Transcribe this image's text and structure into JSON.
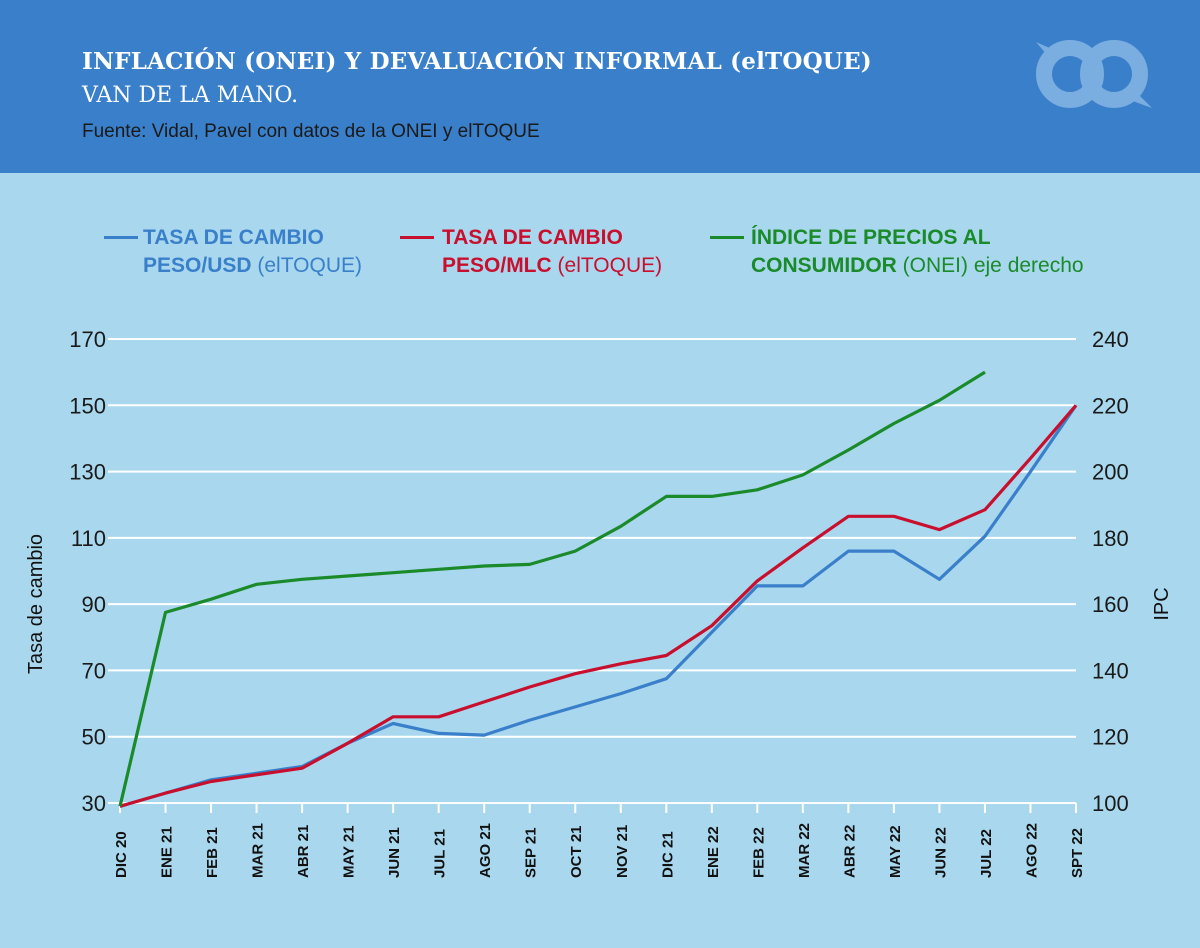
{
  "header": {
    "title": "INFLACIÓN (ONEI) Y DEVALUACIÓN INFORMAL (elTOQUE)",
    "subtitle": "VAN DE LA MANO.",
    "source": "Fuente: Vidal, Pavel con datos de la ONEI y elTOQUE",
    "background_color": "#3a7fca",
    "logo_icon": "eltoque-logo-icon"
  },
  "legend": [
    {
      "line1": "TASA DE CAMBIO",
      "line2_bold": "PESO/USD",
      "line2_rest": " (elTOQUE)",
      "color": "#3a7fca"
    },
    {
      "line1": "TASA DE CAMBIO",
      "line2_bold": "PESO/MLC",
      "line2_rest": " (elTOQUE)",
      "color": "#c8102e"
    },
    {
      "line1": "ÍNDICE DE PRECIOS AL",
      "line2_bold": "CONSUMIDOR",
      "line2_rest": " (ONEI) eje derecho",
      "color": "#1a8a2a"
    }
  ],
  "chart_data": {
    "type": "line",
    "categories": [
      "DIC 20",
      "ENE 21",
      "FEB 21",
      "MAR 21",
      "ABR 21",
      "MAY 21",
      "JUN 21",
      "JUL 21",
      "AGO 21",
      "SEP 21",
      "OCT 21",
      "NOV 21",
      "DIC 21",
      "ENE 22",
      "FEB 22",
      "MAR 22",
      "ABR 22",
      "MAY 22",
      "JUN 22",
      "JUL 22",
      "AGO 22",
      "SPT 22"
    ],
    "ylabel": "Tasa de cambio",
    "ylabel_right": "IPC",
    "ylim": [
      30,
      170
    ],
    "ylim_right": [
      100,
      240
    ],
    "yticks": [
      30,
      50,
      70,
      90,
      110,
      130,
      150,
      170
    ],
    "yticks_right": [
      100,
      120,
      140,
      160,
      180,
      200,
      220,
      240
    ],
    "grid": true,
    "legend_position": "top",
    "series": [
      {
        "name": "TASA DE CAMBIO PESO/USD (elTOQUE)",
        "axis": "left",
        "color": "#3a7fca",
        "values": [
          29,
          33,
          37,
          39,
          41,
          48,
          54,
          51,
          50.5,
          55,
          59,
          63,
          67.5,
          81.5,
          95.5,
          95.5,
          106,
          106,
          97.5,
          110.5,
          130,
          150
        ]
      },
      {
        "name": "TASA DE CAMBIO PESO/MLC (elTOQUE)",
        "axis": "left",
        "color": "#c8102e",
        "values": [
          29,
          33,
          36.5,
          38.5,
          40.5,
          48,
          56,
          56,
          60.5,
          65,
          69,
          72,
          74.5,
          83.5,
          97,
          107,
          116.5,
          116.5,
          112.5,
          118.5,
          134,
          150
        ]
      },
      {
        "name": "ÍNDICE DE PRECIOS AL CONSUMIDOR (ONEI) eje derecho",
        "axis": "right",
        "color": "#1a8a2a",
        "values": [
          99,
          157.5,
          161.5,
          166,
          167.5,
          168.5,
          169.5,
          170.5,
          171.5,
          172,
          176,
          183.5,
          192.5,
          192.5,
          194.5,
          199,
          206.5,
          214.5,
          221.5,
          230,
          null,
          null
        ]
      }
    ]
  }
}
